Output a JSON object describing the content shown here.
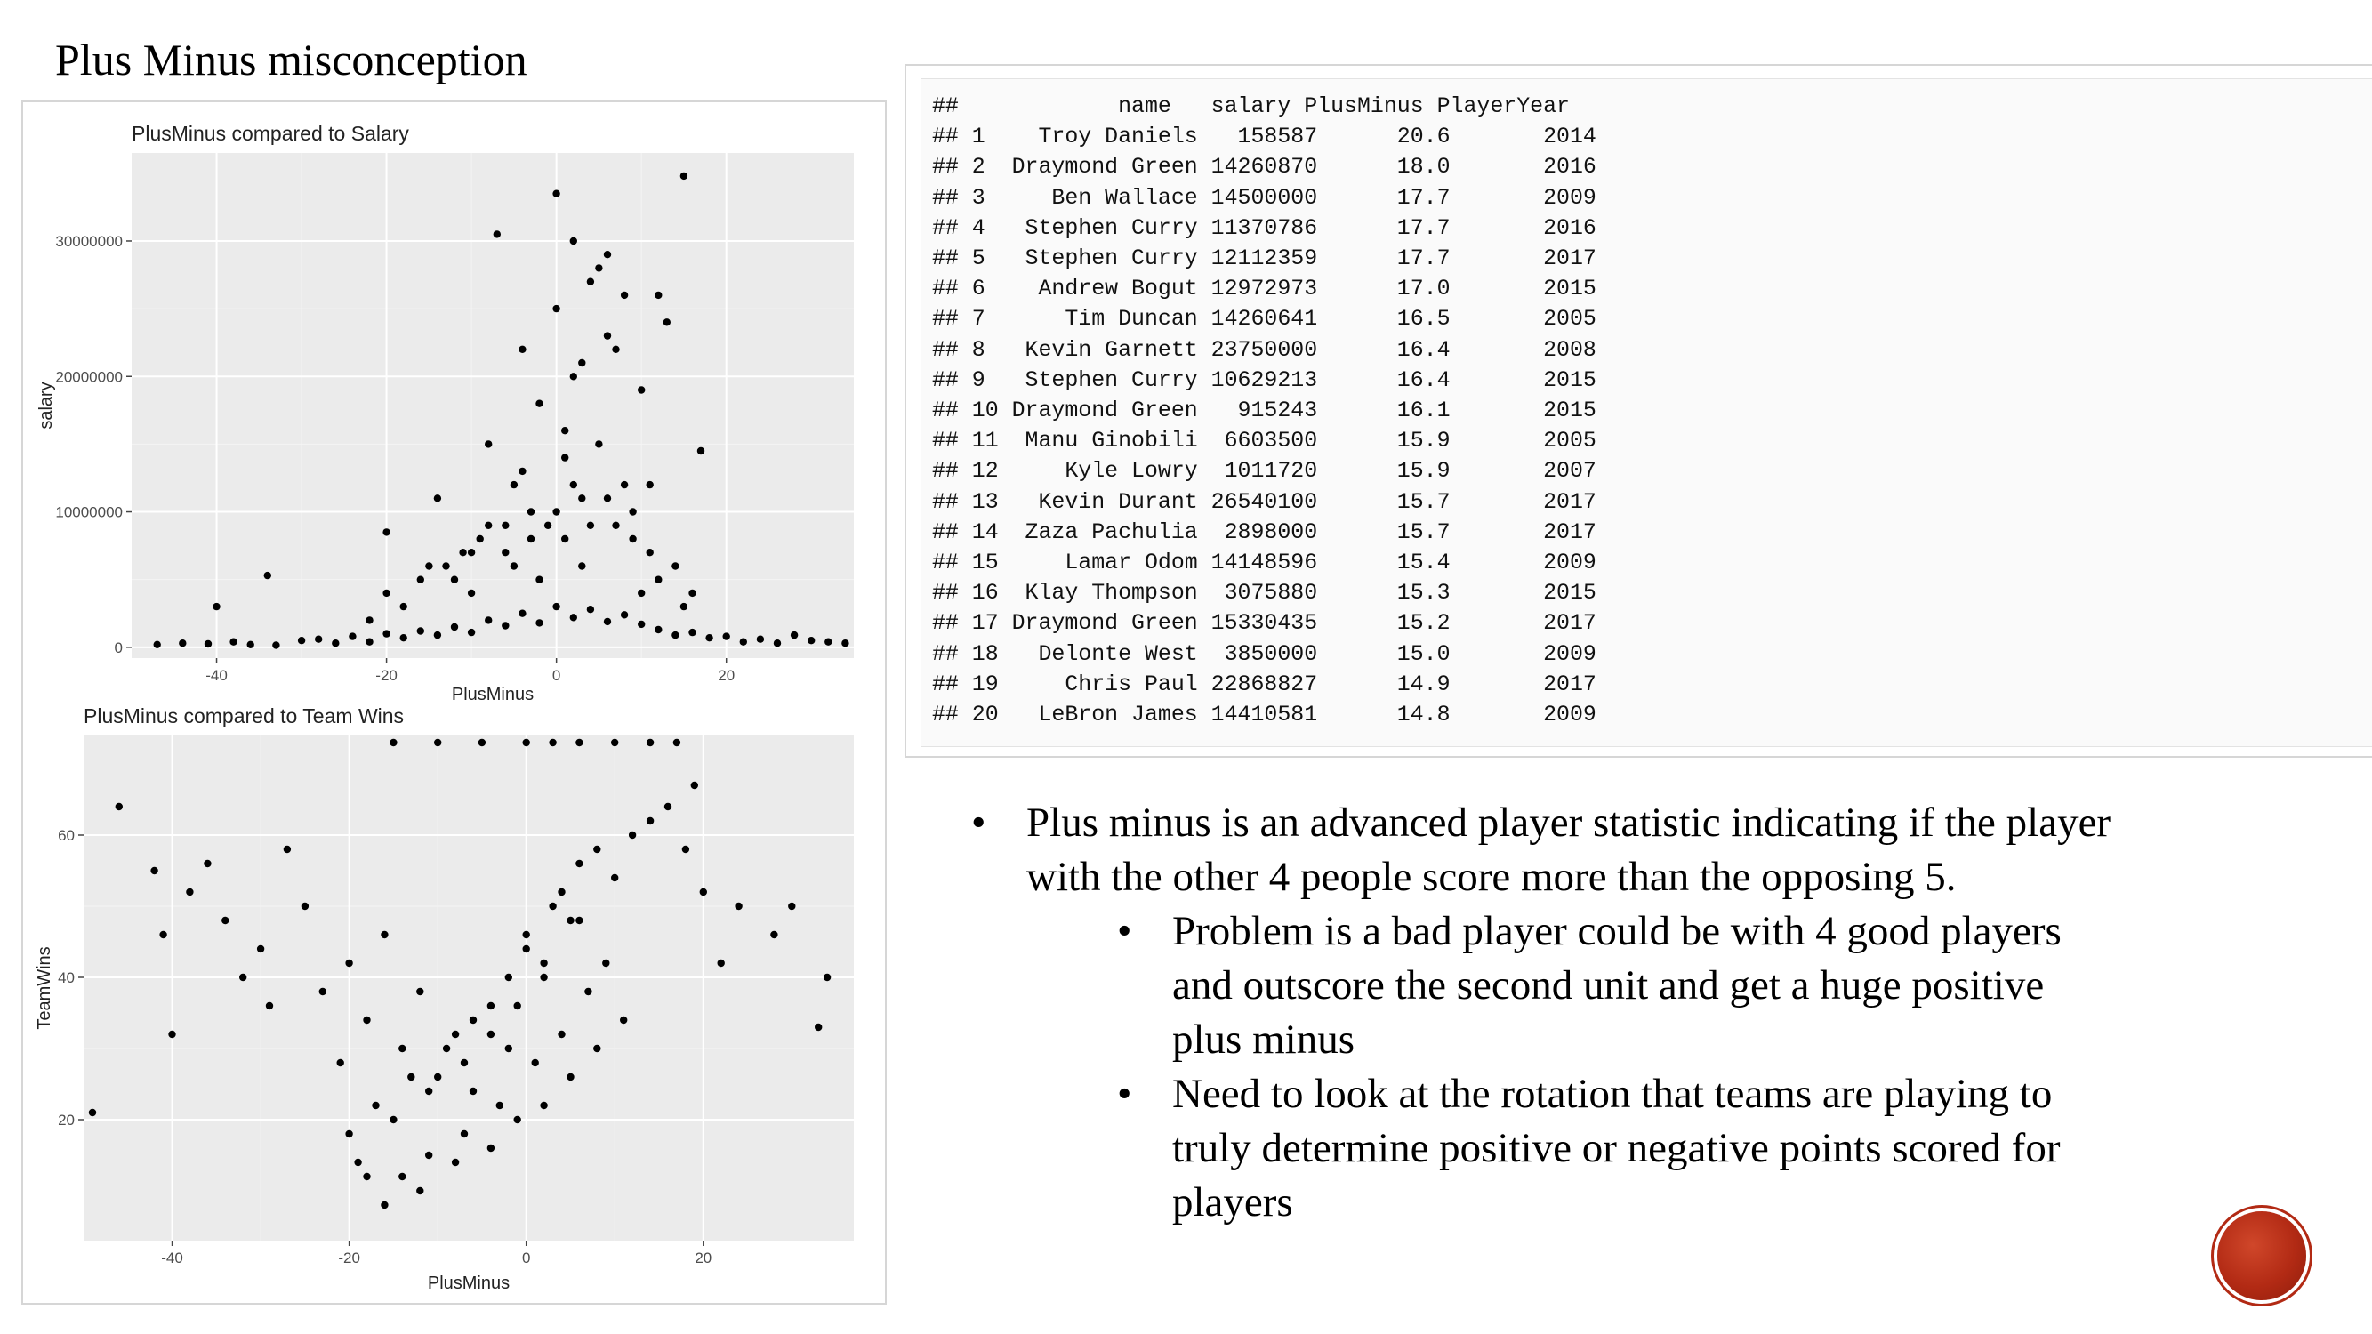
{
  "slide": {
    "title": "Plus Minus misconception"
  },
  "chart_data": [
    {
      "type": "scatter",
      "title": "PlusMinus compared to Salary",
      "xlabel": "PlusMinus",
      "ylabel": "salary",
      "xlim": [
        -50,
        35
      ],
      "ylim": [
        -800000,
        36500000
      ],
      "xticks": [
        -40,
        -20,
        0,
        20
      ],
      "yticks": [
        0,
        10000000,
        20000000,
        30000000
      ],
      "ytick_labels": [
        "0",
        "10000000",
        "20000000",
        "30000000"
      ],
      "grid": true,
      "legend": "none",
      "points_x": [
        -47,
        -44,
        -41,
        -38,
        -36,
        -33,
        -30,
        -28,
        -26,
        -24,
        -22,
        -20,
        -18,
        -16,
        -14,
        -12,
        -10,
        -8,
        -6,
        -4,
        -2,
        0,
        2,
        4,
        6,
        8,
        10,
        12,
        14,
        16,
        18,
        20,
        22,
        24,
        26,
        28,
        30,
        32,
        34,
        -40,
        -34,
        -20,
        -14,
        -8,
        -4,
        0,
        2,
        4,
        6,
        8,
        12,
        15,
        17,
        -10,
        -5,
        -2,
        0,
        3,
        6,
        10,
        13,
        -7,
        1,
        2,
        5,
        7,
        -3,
        -6,
        11,
        -20,
        -15,
        -12,
        -9,
        -4,
        -1,
        1,
        3,
        5,
        8,
        9,
        11,
        14,
        16,
        -22,
        -18,
        -16,
        -11,
        -8,
        -5,
        -3,
        0,
        2,
        4,
        6,
        9,
        12,
        15,
        -13,
        -10,
        -6,
        -2,
        1,
        3,
        7,
        10
      ],
      "points_y": [
        200000,
        300000,
        250000,
        400000,
        200000,
        150000,
        500000,
        600000,
        300000,
        800000,
        400000,
        1000000,
        700000,
        1200000,
        900000,
        1500000,
        1100000,
        2000000,
        1600000,
        2500000,
        1800000,
        3000000,
        2200000,
        2800000,
        1900000,
        2400000,
        1700000,
        1300000,
        900000,
        1100000,
        700000,
        800000,
        400000,
        600000,
        300000,
        900000,
        500000,
        400000,
        300000,
        3000000,
        5300000,
        8500000,
        11000000,
        15000000,
        22000000,
        33500000,
        30000000,
        27000000,
        29000000,
        26000000,
        26000000,
        34800000,
        14500000,
        7000000,
        12000000,
        18000000,
        25000000,
        21000000,
        23000000,
        19000000,
        24000000,
        30500000,
        16000000,
        20000000,
        28000000,
        22000000,
        10000000,
        9000000,
        12000000,
        4000000,
        6000000,
        5000000,
        8000000,
        13000000,
        9000000,
        14000000,
        11000000,
        15000000,
        12000000,
        10000000,
        7000000,
        6000000,
        4000000,
        2000000,
        3000000,
        5000000,
        7000000,
        9000000,
        6000000,
        8000000,
        10000000,
        12000000,
        9000000,
        11000000,
        8000000,
        5000000,
        3000000,
        6000000,
        4000000,
        7000000,
        5000000,
        8000000,
        6000000,
        9000000,
        4000000
      ]
    },
    {
      "type": "scatter",
      "title": "PlusMinus compared to Team Wins",
      "xlabel": "PlusMinus",
      "ylabel": "TeamWins",
      "xlim": [
        -50,
        37
      ],
      "ylim": [
        3,
        74
      ],
      "xticks": [
        -40,
        -20,
        0,
        20
      ],
      "yticks": [
        20,
        40,
        60
      ],
      "ytick_labels": [
        "20",
        "40",
        "60"
      ],
      "grid": true,
      "legend": "none",
      "points_x": [
        -49,
        -46,
        -42,
        -41,
        -40,
        -38,
        -36,
        -34,
        -32,
        -30,
        -29,
        -27,
        -25,
        -23,
        -21,
        -20,
        -18,
        -16,
        -14,
        -12,
        -10,
        -8,
        -6,
        -4,
        -2,
        0,
        2,
        4,
        6,
        8,
        10,
        12,
        14,
        16,
        18,
        20,
        22,
        24,
        28,
        30,
        33,
        34,
        -15,
        -10,
        -5,
        0,
        3,
        6,
        10,
        14,
        17,
        19,
        -20,
        -18,
        -16,
        -12,
        -8,
        -4,
        -1,
        2,
        5,
        8,
        11,
        -14,
        -11,
        -7,
        -3,
        1,
        4,
        7,
        9,
        -17,
        -13,
        -9,
        -6,
        -2,
        0,
        3,
        6,
        -19,
        -15,
        -11,
        -7,
        -4,
        -1,
        2,
        5
      ],
      "points_y": [
        21,
        64,
        55,
        46,
        32,
        52,
        56,
        48,
        40,
        44,
        36,
        58,
        50,
        38,
        28,
        42,
        34,
        46,
        30,
        38,
        26,
        32,
        24,
        36,
        30,
        44,
        40,
        52,
        48,
        58,
        54,
        60,
        62,
        64,
        58,
        52,
        42,
        50,
        46,
        50,
        33,
        40,
        73,
        73,
        73,
        73,
        73,
        73,
        73,
        73,
        73,
        67,
        18,
        12,
        8,
        10,
        14,
        16,
        20,
        22,
        26,
        30,
        34,
        12,
        15,
        18,
        22,
        28,
        32,
        38,
        42,
        22,
        26,
        30,
        34,
        40,
        46,
        50,
        56,
        14,
        20,
        24,
        28,
        32,
        36,
        42,
        48
      ]
    }
  ],
  "console": {
    "header": "##            name   salary PlusMinus PlayerYear",
    "lines": [
      "## 1    Troy Daniels   158587      20.6       2014",
      "## 2  Draymond Green 14260870      18.0       2016",
      "## 3     Ben Wallace 14500000      17.7       2009",
      "## 4   Stephen Curry 11370786      17.7       2016",
      "## 5   Stephen Curry 12112359      17.7       2017",
      "## 6    Andrew Bogut 12972973      17.0       2015",
      "## 7      Tim Duncan 14260641      16.5       2005",
      "## 8   Kevin Garnett 23750000      16.4       2008",
      "## 9   Stephen Curry 10629213      16.4       2015",
      "## 10 Draymond Green   915243      16.1       2015",
      "## 11  Manu Ginobili  6603500      15.9       2005",
      "## 12     Kyle Lowry  1011720      15.9       2007",
      "## 13   Kevin Durant 26540100      15.7       2017",
      "## 14  Zaza Pachulia  2898000      15.7       2017",
      "## 15     Lamar Odom 14148596      15.4       2009",
      "## 16  Klay Thompson  3075880      15.3       2015",
      "## 17 Draymond Green 15330435      15.2       2017",
      "## 18   Delonte West  3850000      15.0       2009",
      "## 19     Chris Paul 22868827      14.9       2017",
      "## 20   LeBron James 14410581      14.8       2009"
    ]
  },
  "bullets": {
    "main": "Plus minus is an advanced player statistic indicating if the player with the other 4 people score more than the opposing 5.",
    "sub": [
      "Problem is a bad player could be with 4 good players and outscore the second unit and get a huge positive plus minus",
      "Need to look at the rotation that teams are playing to truly determine positive or negative points scored for players"
    ]
  },
  "colors": {
    "panel": "#ebebeb",
    "grid": "#ffffff",
    "point": "#000000",
    "logo": "#b22a14"
  },
  "logo": {
    "icon": "circle-logo-icon"
  }
}
